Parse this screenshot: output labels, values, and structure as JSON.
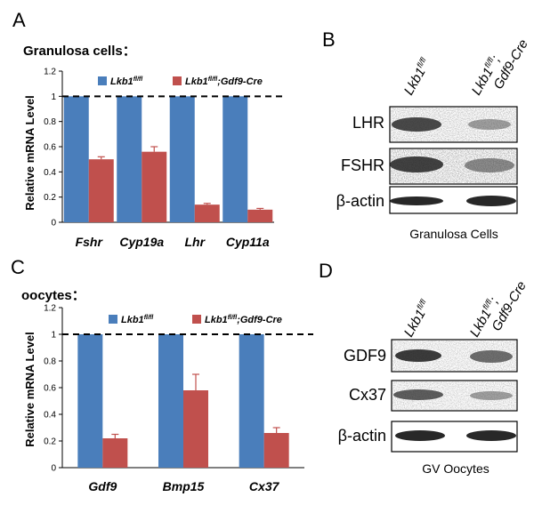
{
  "panel_labels": {
    "a": "A",
    "b": "B",
    "c": "C",
    "d": "D"
  },
  "colors": {
    "series1": "#4a7ebb",
    "series2": "#c0504d",
    "reference": "#000000"
  },
  "legend": {
    "s1": {
      "base": "Lkb1",
      "sup": "fl/fl"
    },
    "s2": {
      "base": "Lkb1",
      "sup": "fl/fl",
      "suffix": ";Gdf9-Cre"
    }
  },
  "chart_data": [
    {
      "type": "bar",
      "title": "Granulosa cells：",
      "ylabel": "Relative mRNA Level",
      "xlabel": "",
      "ylim": [
        0,
        1.2
      ],
      "yticks": [
        "0",
        "0.2",
        "0.4",
        "0.6",
        "0.8",
        "1",
        "1.2"
      ],
      "reference_line": 1.0,
      "categories": [
        "Fshr",
        "Cyp19a",
        "Lhr",
        "Cyp11a"
      ],
      "series": [
        {
          "name": "Lkb1fl/fl",
          "values": [
            1.0,
            1.0,
            1.0,
            1.0
          ],
          "errors": [
            0,
            0,
            0,
            0
          ]
        },
        {
          "name": "Lkb1fl/fl;Gdf9-Cre",
          "values": [
            0.5,
            0.56,
            0.14,
            0.1
          ],
          "errors": [
            0.02,
            0.04,
            0.01,
            0.01
          ]
        }
      ]
    },
    {
      "type": "bar",
      "title": "oocytes：",
      "ylabel": "Relative mRNA Level",
      "xlabel": "",
      "ylim": [
        0,
        1.2
      ],
      "yticks": [
        "0",
        "0.2",
        "0.4",
        "0.6",
        "0.8",
        "1",
        "1.2"
      ],
      "reference_line": 1.0,
      "categories": [
        "Gdf9",
        "Bmp15",
        "Cx37"
      ],
      "series": [
        {
          "name": "Lkb1fl/fl",
          "values": [
            1.0,
            1.0,
            1.0
          ],
          "errors": [
            0,
            0,
            0
          ]
        },
        {
          "name": "Lkb1fl/fl;Gdf9-Cre",
          "values": [
            0.22,
            0.58,
            0.26
          ],
          "errors": [
            0.03,
            0.12,
            0.04
          ]
        }
      ]
    }
  ],
  "blot_b": {
    "lane1": {
      "base": "Lkb1",
      "sup": "fl/fl"
    },
    "lane2": {
      "base": "Lkb1",
      "sup": "fl/fl",
      "suffix": ";",
      "line2": "Gdf9-Cre"
    },
    "bands": [
      "LHR",
      "FSHR",
      "β-actin"
    ],
    "caption": "Granulosa Cells"
  },
  "blot_d": {
    "lane1": {
      "base": "Lkb1",
      "sup": "fl/fl"
    },
    "lane2": {
      "base": "Lkb1",
      "sup": "fl/fl",
      "suffix": ";",
      "line2": "Gdf9-Cre"
    },
    "bands": [
      "GDF9",
      "Cx37",
      "β-actin"
    ],
    "caption": "GV Oocytes"
  }
}
